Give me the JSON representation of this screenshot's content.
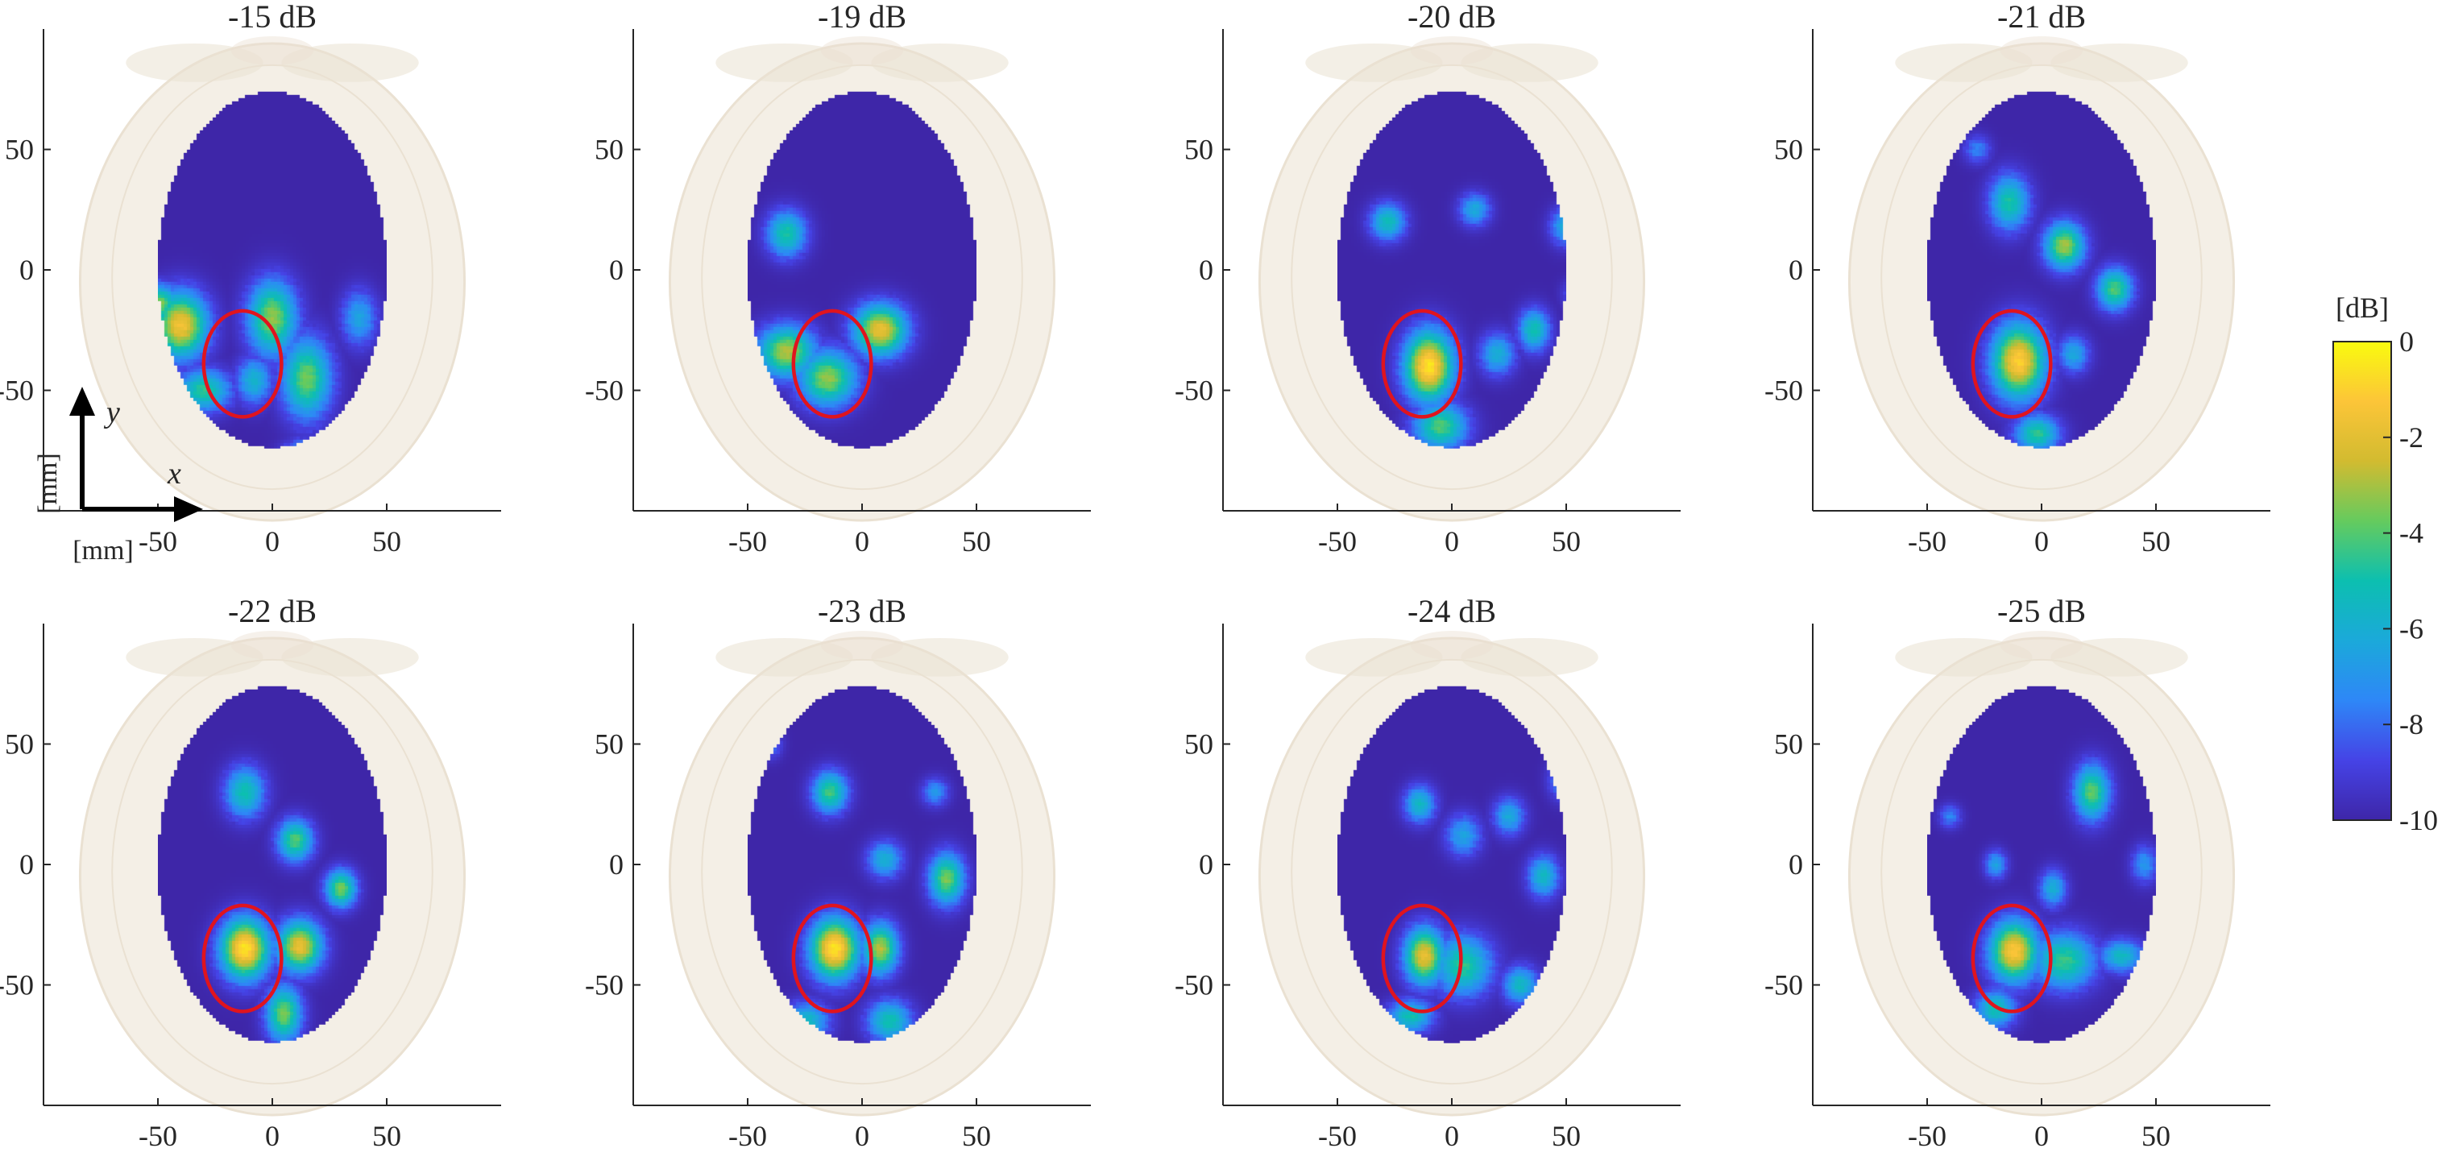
{
  "chart_data": {
    "type": "heatmap",
    "panel_count": 8,
    "panels": [
      {
        "title": "-15 dB",
        "ring_center": [
          -13,
          -39
        ],
        "blobs": [
          {
            "x": -40,
            "y": -23,
            "rx": 12,
            "ry": 14,
            "v": -1.5
          },
          {
            "x": -49,
            "y": -14,
            "rx": 8,
            "ry": 8,
            "v": -3.5
          },
          {
            "x": -30,
            "y": -50,
            "rx": 12,
            "ry": 9,
            "v": -4.5
          },
          {
            "x": 0,
            "y": -20,
            "rx": 11,
            "ry": 16,
            "v": -3.2
          },
          {
            "x": 15,
            "y": -45,
            "rx": 11,
            "ry": 17,
            "v": -3.6
          },
          {
            "x": 38,
            "y": -20,
            "rx": 8,
            "ry": 12,
            "v": -6.5
          },
          {
            "x": -8,
            "y": -46,
            "rx": 8,
            "ry": 10,
            "v": -5.8
          },
          {
            "x": 15,
            "y": -75,
            "rx": 10,
            "ry": 5,
            "v": -6.5
          }
        ]
      },
      {
        "title": "-19 dB",
        "ring_center": [
          -13,
          -39
        ],
        "blobs": [
          {
            "x": -33,
            "y": 15,
            "rx": 9,
            "ry": 10,
            "v": -4.8
          },
          {
            "x": -33,
            "y": -34,
            "rx": 13,
            "ry": 11,
            "v": -2.8
          },
          {
            "x": -15,
            "y": -45,
            "rx": 13,
            "ry": 12,
            "v": -3.2
          },
          {
            "x": 8,
            "y": -25,
            "rx": 12,
            "ry": 11,
            "v": -1.8
          }
        ]
      },
      {
        "title": "-20 dB",
        "ring_center": [
          -13,
          -39
        ],
        "blobs": [
          {
            "x": -10,
            "y": -40,
            "rx": 11,
            "ry": 15,
            "v": -0.5
          },
          {
            "x": -5,
            "y": -65,
            "rx": 12,
            "ry": 10,
            "v": -4.0
          },
          {
            "x": -28,
            "y": 20,
            "rx": 8,
            "ry": 8,
            "v": -5.2
          },
          {
            "x": 10,
            "y": 25,
            "rx": 7,
            "ry": 7,
            "v": -6.2
          },
          {
            "x": 50,
            "y": 18,
            "rx": 7,
            "ry": 8,
            "v": -6.0
          },
          {
            "x": 36,
            "y": -25,
            "rx": 7,
            "ry": 9,
            "v": -5.0
          },
          {
            "x": 20,
            "y": -35,
            "rx": 8,
            "ry": 9,
            "v": -6.0
          },
          {
            "x": 55,
            "y": -10,
            "rx": 6,
            "ry": 6,
            "v": -7.0
          }
        ]
      },
      {
        "title": "-21 dB",
        "ring_center": [
          -13,
          -39
        ],
        "blobs": [
          {
            "x": -10,
            "y": -38,
            "rx": 12,
            "ry": 16,
            "v": -1.0
          },
          {
            "x": -2,
            "y": -68,
            "rx": 10,
            "ry": 8,
            "v": -4.5
          },
          {
            "x": -14,
            "y": 28,
            "rx": 9,
            "ry": 12,
            "v": -4.8
          },
          {
            "x": 10,
            "y": 10,
            "rx": 9,
            "ry": 10,
            "v": -3.0
          },
          {
            "x": 32,
            "y": -8,
            "rx": 8,
            "ry": 9,
            "v": -4.0
          },
          {
            "x": 14,
            "y": -35,
            "rx": 7,
            "ry": 8,
            "v": -6.3
          },
          {
            "x": 58,
            "y": 35,
            "rx": 6,
            "ry": 11,
            "v": -6.5
          },
          {
            "x": -28,
            "y": 50,
            "rx": 6,
            "ry": 6,
            "v": -7.5
          }
        ]
      },
      {
        "title": "-22 dB",
        "ring_center": [
          -13,
          -39
        ],
        "blobs": [
          {
            "x": -12,
            "y": -35,
            "rx": 11,
            "ry": 13,
            "v": -0.5
          },
          {
            "x": 12,
            "y": -34,
            "rx": 10,
            "ry": 11,
            "v": -1.8
          },
          {
            "x": 5,
            "y": -62,
            "rx": 8,
            "ry": 12,
            "v": -3.5
          },
          {
            "x": -12,
            "y": 30,
            "rx": 9,
            "ry": 11,
            "v": -5.0
          },
          {
            "x": 10,
            "y": 10,
            "rx": 8,
            "ry": 9,
            "v": -4.0
          },
          {
            "x": 30,
            "y": -10,
            "rx": 7,
            "ry": 8,
            "v": -3.5
          },
          {
            "x": 60,
            "y": -30,
            "rx": 5,
            "ry": 12,
            "v": -7.0
          }
        ]
      },
      {
        "title": "-23 dB",
        "ring_center": [
          -13,
          -39
        ],
        "blobs": [
          {
            "x": -12,
            "y": -35,
            "rx": 11,
            "ry": 13,
            "v": -0.5
          },
          {
            "x": 8,
            "y": -35,
            "rx": 8,
            "ry": 11,
            "v": -2.8
          },
          {
            "x": 12,
            "y": -65,
            "rx": 10,
            "ry": 9,
            "v": -5.0
          },
          {
            "x": -24,
            "y": -65,
            "rx": 10,
            "ry": 8,
            "v": -5.5
          },
          {
            "x": -14,
            "y": 30,
            "rx": 8,
            "ry": 9,
            "v": -4.2
          },
          {
            "x": 37,
            "y": -6,
            "rx": 8,
            "ry": 11,
            "v": -3.5
          },
          {
            "x": 10,
            "y": 2,
            "rx": 8,
            "ry": 8,
            "v": -6.0
          },
          {
            "x": 32,
            "y": 30,
            "rx": 6,
            "ry": 6,
            "v": -7.0
          },
          {
            "x": -40,
            "y": 50,
            "rx": 5,
            "ry": 6,
            "v": -7.5
          }
        ]
      },
      {
        "title": "-24 dB",
        "ring_center": [
          -13,
          -39
        ],
        "blobs": [
          {
            "x": -12,
            "y": -38,
            "rx": 9,
            "ry": 12,
            "v": -1.8
          },
          {
            "x": 5,
            "y": -42,
            "rx": 13,
            "ry": 13,
            "v": -4.5
          },
          {
            "x": -18,
            "y": -63,
            "rx": 10,
            "ry": 7,
            "v": -5.0
          },
          {
            "x": 30,
            "y": -50,
            "rx": 8,
            "ry": 8,
            "v": -5.5
          },
          {
            "x": -14,
            "y": 25,
            "rx": 7,
            "ry": 8,
            "v": -5.5
          },
          {
            "x": 5,
            "y": 12,
            "rx": 8,
            "ry": 9,
            "v": -6.5
          },
          {
            "x": 25,
            "y": 20,
            "rx": 7,
            "ry": 8,
            "v": -6.2
          },
          {
            "x": 40,
            "y": -5,
            "rx": 7,
            "ry": 9,
            "v": -5.5
          },
          {
            "x": 48,
            "y": 35,
            "rx": 6,
            "ry": 8,
            "v": -7.0
          }
        ]
      },
      {
        "title": "-25 dB",
        "ring_center": [
          -13,
          -39
        ],
        "blobs": [
          {
            "x": -12,
            "y": -36,
            "rx": 11,
            "ry": 13,
            "v": -1.2
          },
          {
            "x": 10,
            "y": -40,
            "rx": 14,
            "ry": 12,
            "v": -4.3
          },
          {
            "x": -20,
            "y": -60,
            "rx": 9,
            "ry": 8,
            "v": -5.0
          },
          {
            "x": 35,
            "y": -38,
            "rx": 10,
            "ry": 7,
            "v": -5.5
          },
          {
            "x": 22,
            "y": 30,
            "rx": 8,
            "ry": 12,
            "v": -3.8
          },
          {
            "x": 5,
            "y": -10,
            "rx": 6,
            "ry": 8,
            "v": -6.0
          },
          {
            "x": -20,
            "y": 0,
            "rx": 5,
            "ry": 6,
            "v": -6.5
          },
          {
            "x": 45,
            "y": 0,
            "rx": 6,
            "ry": 8,
            "v": -7.0
          },
          {
            "x": -40,
            "y": 20,
            "rx": 5,
            "ry": 5,
            "v": -7.5
          }
        ]
      }
    ],
    "x_ticks": [
      -50,
      0,
      50
    ],
    "y_ticks": [
      50,
      0,
      -50
    ],
    "xlim": [
      -100,
      100
    ],
    "ylim": [
      -100,
      100
    ],
    "x_axis_var": "x",
    "y_axis_var": "y",
    "x_unit_label": "[mm]",
    "y_unit_label": "[mm]",
    "ring": {
      "rx": 17,
      "ry": 22,
      "color": "#e0141e"
    },
    "brain_region": {
      "cx": 0,
      "cy": 0,
      "rx": 50,
      "ry": 74
    },
    "colorbar": {
      "label": "[dB]",
      "range": [
        -10,
        0
      ],
      "ticks": [
        0,
        -2,
        -4,
        -6,
        -8,
        -10
      ],
      "colormap": "parula",
      "background_value": -10
    },
    "colors": {
      "skull": "#f4efe6",
      "skull_edge": "#eae1d2",
      "low": "#3e26a8",
      "high": "#f9fb0e"
    }
  }
}
